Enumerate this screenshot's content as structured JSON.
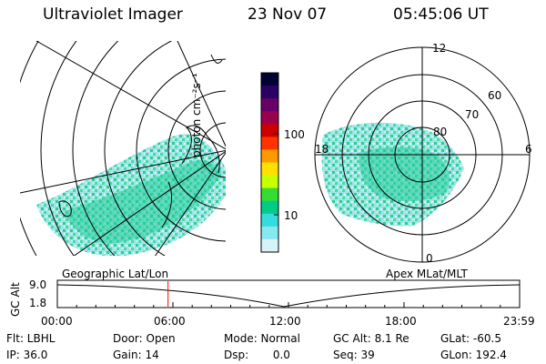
{
  "header": {
    "instrument": "Ultraviolet Imager",
    "date": "23 Nov 07",
    "time": "05:45:06 UT"
  },
  "colorbar": {
    "unit": "photon cm⁻²s⁻¹",
    "ticks": [
      {
        "label": "100",
        "value": 100
      },
      {
        "label": "10",
        "value": 10
      }
    ],
    "colors": [
      "#000033",
      "#2a0066",
      "#660066",
      "#99004d",
      "#cc0000",
      "#ff3300",
      "#ff9900",
      "#ffe000",
      "#c8ff00",
      "#33dd33",
      "#00cc88",
      "#33dddd",
      "#88e8f0",
      "#d7f3f7"
    ]
  },
  "left_map": {
    "label": "Geographic Lat/Lon"
  },
  "right_map": {
    "label": "Apex MLat/MLT",
    "mlt_labels": {
      "top": "12",
      "left": "18",
      "right": "6",
      "bottom": "0"
    },
    "mlat_labels": [
      "80",
      "70",
      "60"
    ]
  },
  "timeline": {
    "ylabel": "GC Alt",
    "y_ticks": [
      "9.0",
      "1.8"
    ],
    "x_ticks": [
      "00:00",
      "06:00",
      "12:00",
      "18:00",
      "23:59"
    ],
    "marker_hours": 5.75,
    "marker_color": "#ff0000"
  },
  "info": {
    "filter": "Flt: LBHL",
    "ip": "IP: 36.0",
    "door": "Door: Open",
    "gain": "Gain: 14",
    "mode": "Mode: Normal",
    "dsp": "Dsp:       0.0",
    "gc_alt": "GC Alt: 8.1 Re",
    "seq": "Seq: 39",
    "glat": "GLat: -60.5",
    "glon": "GLon: 192.4"
  }
}
